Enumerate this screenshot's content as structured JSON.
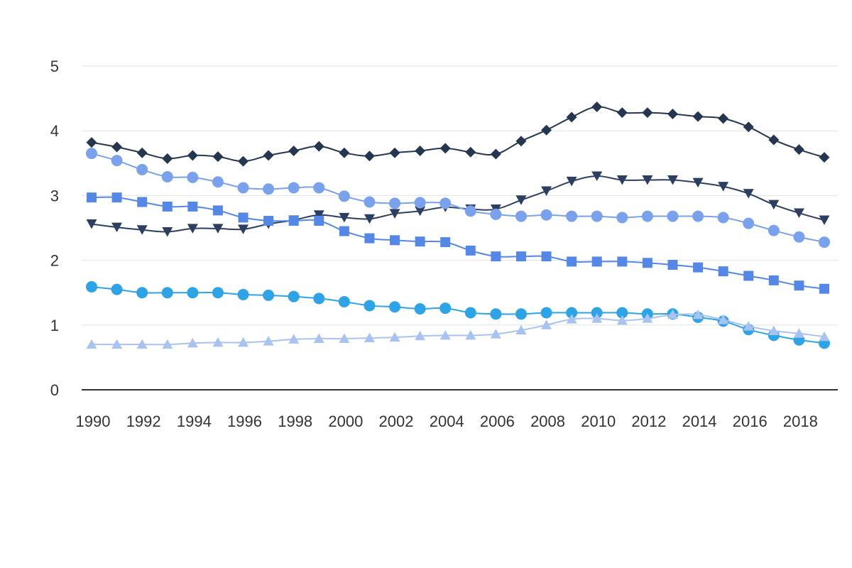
{
  "chart_data": {
    "type": "line",
    "title": "",
    "xlabel": "",
    "ylabel": "",
    "ylim": [
      0,
      5
    ],
    "y_ticks": [
      0,
      1,
      2,
      3,
      4,
      5
    ],
    "x_tick_labels": [
      "1990",
      "1992",
      "1994",
      "1996",
      "1998",
      "2000",
      "2002",
      "2004",
      "2006",
      "2008",
      "2010",
      "2012",
      "2014",
      "2016",
      "2018"
    ],
    "grid": true,
    "legend": "none",
    "x": [
      1990,
      1991,
      1992,
      1993,
      1994,
      1995,
      1996,
      1997,
      1998,
      1999,
      2000,
      2001,
      2002,
      2003,
      2004,
      2005,
      2006,
      2007,
      2008,
      2009,
      2010,
      2011,
      2012,
      2013,
      2014,
      2015,
      2016,
      2017,
      2018,
      2019
    ],
    "series": [
      {
        "marker": "diamond",
        "color": "#253650",
        "values": [
          3.82,
          3.75,
          3.66,
          3.57,
          3.62,
          3.6,
          3.53,
          3.62,
          3.69,
          3.76,
          3.66,
          3.61,
          3.66,
          3.69,
          3.73,
          3.67,
          3.64,
          3.84,
          4.01,
          4.21,
          4.37,
          4.28,
          4.28,
          4.26,
          4.22,
          4.19,
          4.06,
          3.86,
          3.71,
          3.59
        ]
      },
      {
        "marker": "triangle-down",
        "color": "#2d3f60",
        "values": [
          2.56,
          2.51,
          2.47,
          2.44,
          2.49,
          2.49,
          2.48,
          2.56,
          2.62,
          2.7,
          2.66,
          2.64,
          2.72,
          2.76,
          2.82,
          2.79,
          2.79,
          2.93,
          3.07,
          3.22,
          3.3,
          3.24,
          3.24,
          3.24,
          3.2,
          3.14,
          3.03,
          2.86,
          2.73,
          2.62
        ]
      },
      {
        "marker": "circle",
        "color": "#7aa1eb",
        "values": [
          3.65,
          3.54,
          3.4,
          3.29,
          3.28,
          3.21,
          3.12,
          3.1,
          3.12,
          3.12,
          2.99,
          2.9,
          2.88,
          2.89,
          2.88,
          2.76,
          2.71,
          2.68,
          2.7,
          2.68,
          2.68,
          2.66,
          2.68,
          2.68,
          2.68,
          2.66,
          2.57,
          2.46,
          2.36,
          2.28
        ]
      },
      {
        "marker": "square",
        "color": "#5587e6",
        "values": [
          2.97,
          2.97,
          2.9,
          2.83,
          2.83,
          2.77,
          2.66,
          2.61,
          2.61,
          2.61,
          2.45,
          2.34,
          2.31,
          2.29,
          2.28,
          2.15,
          2.06,
          2.06,
          2.06,
          1.98,
          1.98,
          1.98,
          1.96,
          1.93,
          1.89,
          1.83,
          1.76,
          1.69,
          1.61,
          1.56
        ]
      },
      {
        "marker": "circle",
        "color": "#2ea3e6",
        "values": [
          1.59,
          1.55,
          1.5,
          1.5,
          1.5,
          1.5,
          1.47,
          1.46,
          1.44,
          1.41,
          1.36,
          1.3,
          1.28,
          1.25,
          1.26,
          1.19,
          1.17,
          1.17,
          1.19,
          1.19,
          1.19,
          1.19,
          1.17,
          1.17,
          1.12,
          1.06,
          0.93,
          0.84,
          0.77,
          0.72
        ]
      },
      {
        "marker": "triangle-up",
        "color": "#a9c3f0",
        "values": [
          0.7,
          0.7,
          0.7,
          0.7,
          0.72,
          0.73,
          0.73,
          0.75,
          0.78,
          0.79,
          0.79,
          0.8,
          0.81,
          0.83,
          0.84,
          0.84,
          0.86,
          0.92,
          1.0,
          1.09,
          1.1,
          1.07,
          1.1,
          1.16,
          1.16,
          1.08,
          0.98,
          0.91,
          0.87,
          0.82
        ]
      }
    ]
  }
}
